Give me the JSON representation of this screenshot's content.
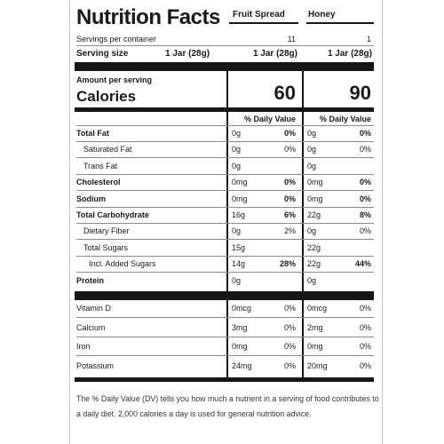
{
  "title": "Nutrition Facts",
  "columns": [
    "Fruit Spread",
    "Honey"
  ],
  "servings_per_container_label": "Servings per container",
  "servings_per_container": [
    "11",
    "1"
  ],
  "serving_size_label": "Serving size",
  "serving_size_main": "1 Jar (28g)",
  "serving_size": [
    "1 Jar (28g)",
    "1 Jar (28g)"
  ],
  "amount_per_serving": "Amount per serving",
  "calories_label": "Calories",
  "calories": [
    "60",
    "90"
  ],
  "dv_header": "% Daily Value",
  "nutrients": [
    {
      "name": "Total Fat",
      "bold": true,
      "indent": 0,
      "a": "0g",
      "adv": "0%",
      "b": "0g",
      "bdv": "0%"
    },
    {
      "name": "Saturated Fat",
      "bold": false,
      "indent": 1,
      "a": "0g",
      "adv": "0%",
      "b": "0g",
      "bdv": "0%"
    },
    {
      "name": "Trans Fat",
      "bold": false,
      "indent": 1,
      "a": "0g",
      "adv": "",
      "b": "0g",
      "bdv": ""
    },
    {
      "name": "Cholesterol",
      "bold": true,
      "indent": 0,
      "a": "0mg",
      "adv": "0%",
      "b": "0mg",
      "bdv": "0%"
    },
    {
      "name": "Sodium",
      "bold": true,
      "indent": 0,
      "a": "0mg",
      "adv": "0%",
      "b": "0mg",
      "bdv": "0%"
    },
    {
      "name": "Total Carbohydrate",
      "bold": true,
      "indent": 0,
      "a": "16g",
      "adv": "6%",
      "b": "22g",
      "bdv": "8%"
    },
    {
      "name": "Dietary Fiber",
      "bold": false,
      "indent": 1,
      "a": "0g",
      "adv": "2%",
      "b": "0g",
      "bdv": "0%"
    },
    {
      "name": "Total Sugars",
      "bold": false,
      "indent": 1,
      "a": "15g",
      "adv": "",
      "b": "22g",
      "bdv": ""
    },
    {
      "name": "Incl. Added Sugars",
      "bold": false,
      "indent": 2,
      "a": "14g",
      "adv": "28%",
      "b": "22g",
      "bdv": "44%"
    },
    {
      "name": "Protein",
      "bold": true,
      "indent": 0,
      "a": "0g",
      "adv": "",
      "b": "0g",
      "bdv": ""
    }
  ],
  "vitamins": [
    {
      "name": "Vitamin D",
      "a": "0mcg",
      "adv": "0%",
      "b": "0mcg",
      "bdv": "0%"
    },
    {
      "name": "Calcium",
      "a": "3mg",
      "adv": "0%",
      "b": "2mg",
      "bdv": "0%"
    },
    {
      "name": "Iron",
      "a": "0mg",
      "adv": "0%",
      "b": "0mg",
      "bdv": "0%"
    },
    {
      "name": "Potassium",
      "a": "24mg",
      "adv": "0%",
      "b": "20mg",
      "bdv": "0%"
    }
  ],
  "footnote_line1": "The % Daily Value (DV) tells you how much a nutrient in a serving of food contributes to",
  "footnote_line2": "a daily diet. 2,000 calories a day is used for general nutrition advice.",
  "colors": {
    "bars": "#161616",
    "rules": "#8a8a8a",
    "edge": "#c9c9c9"
  }
}
